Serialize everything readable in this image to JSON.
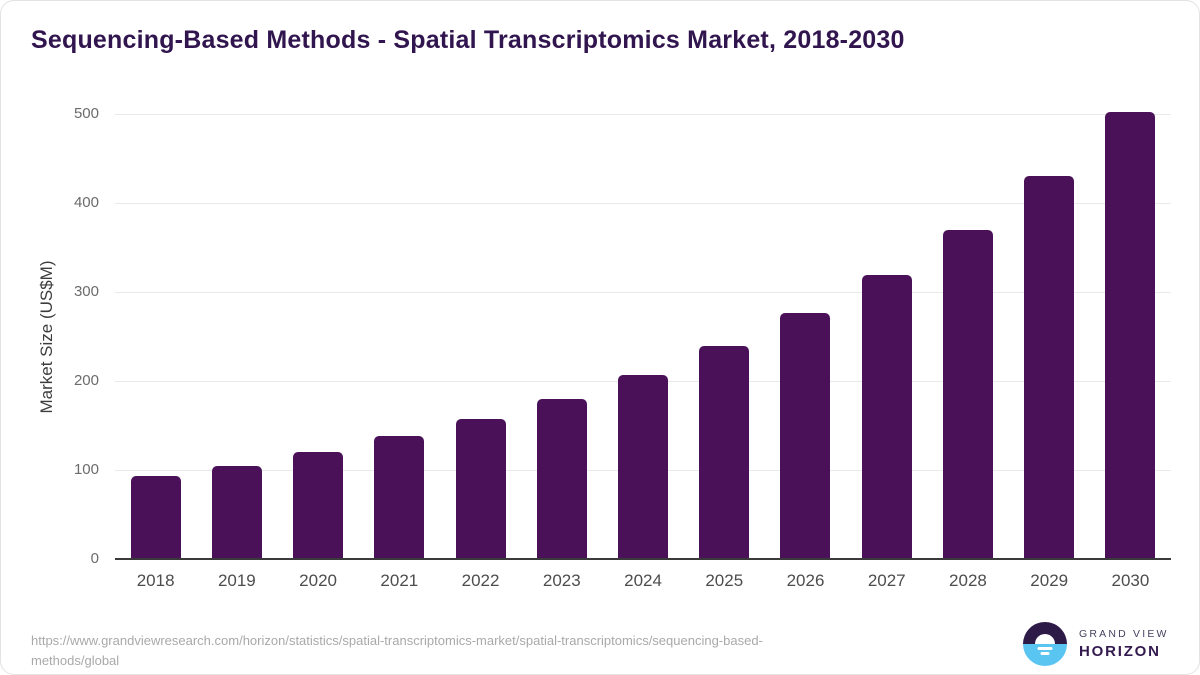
{
  "chart_data": {
    "type": "bar",
    "title": "Sequencing-Based Methods - Spatial Transcriptomics Market, 2018-2030",
    "categories": [
      "2018",
      "2019",
      "2020",
      "2021",
      "2022",
      "2023",
      "2024",
      "2025",
      "2026",
      "2027",
      "2028",
      "2029",
      "2030"
    ],
    "values": [
      93,
      105,
      120,
      138,
      157,
      180,
      207,
      239,
      276,
      319,
      370,
      430,
      502
    ],
    "xlabel": "",
    "ylabel": "Market Size (US$M)",
    "ylim": [
      0,
      500
    ],
    "yticks": [
      0,
      100,
      200,
      300,
      400,
      500
    ],
    "grid": true,
    "legend": false
  },
  "colors": {
    "bar": "#4a1158",
    "title_text": "#31154e",
    "gridline": "#e9e9e9",
    "axis_line": "#3a3a3a",
    "y_tick_text": "#6b6b6b",
    "x_label_text": "#4d4d4d",
    "source_text": "#a9a9a9",
    "logo_purple": "#2e1a47",
    "logo_blue": "#5bc5f2"
  },
  "footer": {
    "source_line1": "https://www.grandviewresearch.com/horizon/statistics/spatial-transcriptomics-market/spatial-transcriptomics/sequencing-based-",
    "source_line2": "methods/global",
    "logo": {
      "top": "GRAND VIEW",
      "bottom": "HORIZON"
    }
  }
}
